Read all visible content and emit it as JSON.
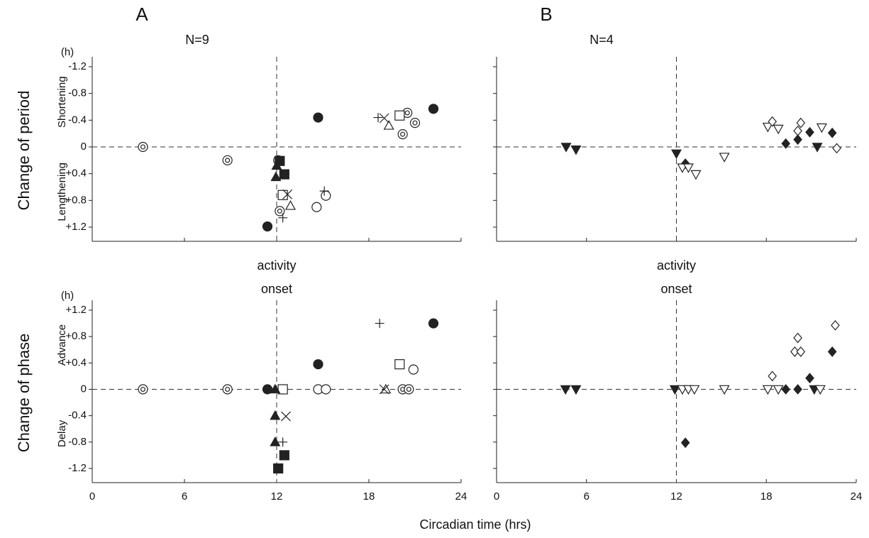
{
  "figure": {
    "xlabel": "Circadian time  (hrs)"
  },
  "chart_data": [
    {
      "type": "scatter",
      "panel": "A",
      "n_label": "N=9",
      "unit": "(h)",
      "ylabel": "Change of  period",
      "ylabel_top": "Shortening",
      "ylabel_bottom": "Lengthening",
      "xlim": [
        0,
        24
      ],
      "xticks": [
        0,
        6,
        12,
        18,
        24
      ],
      "show_xtick_labels": false,
      "show_ytick_labels": true,
      "ylim": [
        1.2,
        -1.2
      ],
      "yticks": [
        -1.2,
        -0.8,
        -0.4,
        0,
        {
          "value": 0.4,
          "label": "+0.4"
        },
        {
          "value": 0.8,
          "label": "+0.8"
        },
        {
          "value": 1.2,
          "label": "+1.2"
        }
      ],
      "vline": 12,
      "hline": 0,
      "series": [
        {
          "marker": "double-circle",
          "color": "#222",
          "x": [
            3.3,
            8.8,
            12.1,
            20.5,
            20.2,
            21.0,
            12.2
          ],
          "values": [
            0,
            0.2,
            0.2,
            -0.51,
            -0.19,
            -0.36,
            0.96
          ]
        },
        {
          "marker": "open-circle",
          "color": "#222",
          "x": [
            14.6,
            15.2
          ],
          "values": [
            0.9,
            0.73
          ]
        },
        {
          "marker": "filled-circle",
          "color": "#222",
          "x": [
            11.4,
            14.7,
            22.2
          ],
          "values": [
            1.19,
            -0.44,
            -0.57
          ]
        },
        {
          "marker": "filled-square",
          "color": "#222",
          "x": [
            12.2,
            12.5
          ],
          "values": [
            0.21,
            0.41
          ]
        },
        {
          "marker": "open-square",
          "color": "#222",
          "x": [
            12.4,
            20.0
          ],
          "values": [
            0.72,
            -0.47
          ]
        },
        {
          "marker": "filled-triangle",
          "color": "#222",
          "x": [
            12.0,
            11.95
          ],
          "values": [
            0.28,
            0.45
          ]
        },
        {
          "marker": "open-triangle",
          "color": "#222",
          "x": [
            12.9,
            19.3
          ],
          "values": [
            0.88,
            -0.32
          ]
        },
        {
          "marker": "plus",
          "color": "#222",
          "x": [
            12.4,
            15.1,
            18.6
          ],
          "values": [
            1.06,
            0.66,
            -0.44
          ]
        },
        {
          "marker": "cross",
          "color": "#222",
          "x": [
            12.7,
            19.0
          ],
          "values": [
            0.71,
            -0.43
          ]
        }
      ]
    },
    {
      "type": "scatter",
      "panel": "B",
      "n_label": "N=4",
      "xlim": [
        0,
        24
      ],
      "xticks": [
        0,
        6,
        12,
        18,
        24
      ],
      "show_xtick_labels": false,
      "show_ytick_labels": false,
      "ylim": [
        1.2,
        -1.2
      ],
      "yticks": [
        -1.2,
        -0.8,
        -0.4,
        0,
        0.4,
        0.8,
        1.2
      ],
      "vline": 12,
      "hline": 0,
      "series": [
        {
          "marker": "filled-down-triangle",
          "color": "#222",
          "x": [
            4.64,
            5.3,
            12.0,
            21.4
          ],
          "values": [
            0,
            0.04,
            0.1,
            0
          ]
        },
        {
          "marker": "filled-diamond",
          "color": "#222",
          "x": [
            12.6,
            19.3,
            20.1,
            20.9,
            22.4
          ],
          "values": [
            0.25,
            -0.05,
            -0.11,
            -0.22,
            -0.21
          ]
        },
        {
          "marker": "open-down-triangle",
          "color": "#222",
          "x": [
            12.4,
            12.8,
            13.3,
            15.2,
            18.1,
            18.8,
            21.7
          ],
          "values": [
            0.31,
            0.31,
            0.41,
            0.15,
            -0.3,
            -0.27,
            -0.29
          ]
        },
        {
          "marker": "open-diamond",
          "color": "#222",
          "x": [
            18.4,
            20.3,
            20.1,
            22.7
          ],
          "values": [
            -0.38,
            -0.36,
            -0.24,
            0.02
          ]
        }
      ]
    },
    {
      "type": "scatter",
      "annotation": [
        "activity",
        "onset"
      ],
      "unit": "(h)",
      "ylabel": "Change of  phase",
      "ylabel_top": "Advance",
      "ylabel_bottom": "Delay",
      "xlim": [
        0,
        24
      ],
      "xticks": [
        0,
        6,
        12,
        18,
        24
      ],
      "show_xtick_labels": true,
      "show_ytick_labels": true,
      "ylim": [
        -1.2,
        1.2
      ],
      "yticks": [
        {
          "value": 1.2,
          "label": "+1.2"
        },
        {
          "value": 0.8,
          "label": "+0.8"
        },
        {
          "value": 0.4,
          "label": "+0.4"
        },
        0,
        -0.4,
        -0.8,
        -1.2
      ],
      "vline": 12,
      "hline": 0,
      "series": [
        {
          "marker": "double-circle",
          "color": "#222",
          "x": [
            3.3,
            8.8,
            12.4,
            20.2,
            20.6
          ],
          "values": [
            0,
            0,
            0,
            0,
            0
          ]
        },
        {
          "marker": "open-circle",
          "color": "#222",
          "x": [
            14.7,
            15.2,
            20.9
          ],
          "values": [
            0,
            0,
            0.3
          ]
        },
        {
          "marker": "filled-circle",
          "color": "#222",
          "x": [
            11.4,
            14.7,
            22.2
          ],
          "values": [
            0,
            0.38,
            1.0
          ]
        },
        {
          "marker": "filled-square",
          "color": "#222",
          "x": [
            12.5,
            12.1
          ],
          "values": [
            -1.0,
            -1.2
          ]
        },
        {
          "marker": "open-square",
          "color": "#222",
          "x": [
            12.4,
            20.0
          ],
          "values": [
            0,
            0.38
          ]
        },
        {
          "marker": "filled-triangle",
          "color": "#222",
          "x": [
            11.9,
            11.9,
            11.9
          ],
          "values": [
            0,
            -0.4,
            -0.8
          ]
        },
        {
          "marker": "open-triangle",
          "color": "#222",
          "x": [
            19.1
          ],
          "values": [
            0
          ]
        },
        {
          "marker": "plus",
          "color": "#222",
          "x": [
            12.4,
            18.7
          ],
          "values": [
            -0.8,
            1.0
          ]
        },
        {
          "marker": "cross",
          "color": "#222",
          "x": [
            12.6,
            19.0
          ],
          "values": [
            -0.41,
            0
          ]
        }
      ]
    },
    {
      "type": "scatter",
      "annotation": [
        "activity",
        "onset"
      ],
      "xlim": [
        0,
        24
      ],
      "xticks": [
        0,
        6,
        12,
        18,
        24
      ],
      "show_xtick_labels": true,
      "show_ytick_labels": false,
      "ylim": [
        -1.2,
        1.2
      ],
      "yticks": [
        1.2,
        0.8,
        0.4,
        0,
        -0.4,
        -0.8,
        -1.2
      ],
      "vline": 12,
      "hline": 0,
      "series": [
        {
          "marker": "filled-down-triangle",
          "color": "#222",
          "x": [
            4.6,
            5.3,
            11.9,
            21.2
          ],
          "values": [
            0,
            0,
            0,
            0
          ]
        },
        {
          "marker": "filled-diamond",
          "color": "#222",
          "x": [
            12.6,
            19.3,
            20.1,
            20.9,
            22.4
          ],
          "values": [
            -0.81,
            0,
            0,
            0.17,
            0.57
          ]
        },
        {
          "marker": "open-down-triangle",
          "color": "#222",
          "x": [
            12.4,
            12.8,
            13.2,
            15.2,
            18.1,
            18.8,
            21.6
          ],
          "values": [
            0,
            0,
            0,
            0,
            0,
            0,
            0
          ]
        },
        {
          "marker": "open-diamond",
          "color": "#222",
          "x": [
            18.4,
            20.1,
            19.9,
            20.3,
            22.6
          ],
          "values": [
            0.2,
            0.78,
            0.57,
            0.57,
            0.97
          ]
        }
      ]
    }
  ]
}
